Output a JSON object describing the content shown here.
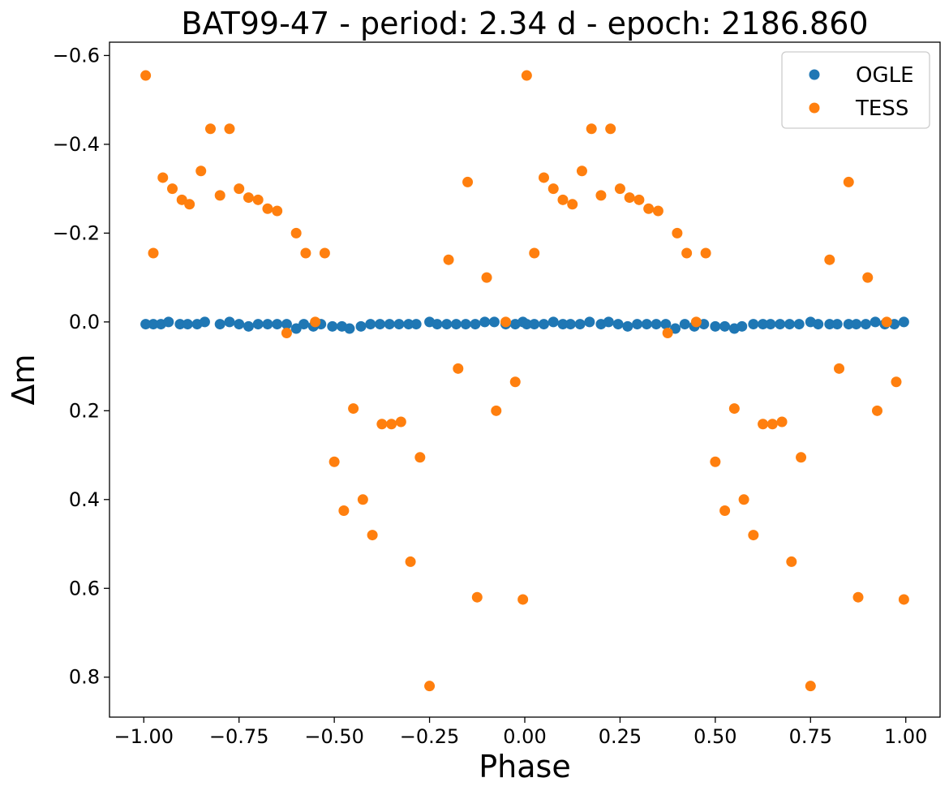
{
  "chart_data": {
    "type": "scatter",
    "title": "BAT99-47 - period: 2.34 d - epoch: 2186.860",
    "xlabel": "Phase",
    "ylabel": "Δm",
    "xlim": [
      -1.09,
      1.09
    ],
    "ylim": [
      0.89,
      -0.63
    ],
    "y_inverted": true,
    "grid": false,
    "legend_position": "top-right",
    "x_ticks": [
      -1.0,
      -0.75,
      -0.5,
      -0.25,
      0.0,
      0.25,
      0.5,
      0.75,
      1.0
    ],
    "x_tick_labels": [
      "−1.00",
      "−0.75",
      "−0.50",
      "−0.25",
      "0.00",
      "0.25",
      "0.50",
      "0.75",
      "1.00"
    ],
    "y_ticks": [
      -0.6,
      -0.4,
      -0.2,
      0.0,
      0.2,
      0.4,
      0.6,
      0.8
    ],
    "y_tick_labels": [
      "−0.6",
      "−0.4",
      "−0.2",
      "0.0",
      "0.2",
      "0.4",
      "0.6",
      "0.8"
    ],
    "series": [
      {
        "name": "OGLE",
        "color": "#1f77b4",
        "x": [
          -0.995,
          -0.975,
          -0.955,
          -0.935,
          -0.905,
          -0.885,
          -0.86,
          -0.84,
          -0.8,
          -0.775,
          -0.75,
          -0.725,
          -0.7,
          -0.675,
          -0.65,
          -0.625,
          -0.6,
          -0.58,
          -0.555,
          -0.535,
          -0.505,
          -0.48,
          -0.46,
          -0.43,
          -0.405,
          -0.38,
          -0.355,
          -0.33,
          -0.305,
          -0.285,
          -0.25,
          -0.23,
          -0.205,
          -0.18,
          -0.155,
          -0.13,
          -0.105,
          -0.08,
          -0.05,
          -0.025,
          -0.005,
          0.005,
          0.025,
          0.05,
          0.075,
          0.1,
          0.12,
          0.145,
          0.17,
          0.2,
          0.22,
          0.245,
          0.27,
          0.295,
          0.32,
          0.345,
          0.37,
          0.395,
          0.42,
          0.445,
          0.47,
          0.5,
          0.525,
          0.55,
          0.57,
          0.6,
          0.625,
          0.645,
          0.67,
          0.695,
          0.72,
          0.75,
          0.77,
          0.8,
          0.82,
          0.85,
          0.87,
          0.895,
          0.92,
          0.945,
          0.97,
          0.995
        ],
        "y": [
          0.005,
          0.005,
          0.005,
          0.0,
          0.005,
          0.005,
          0.005,
          0.0,
          0.005,
          0.0,
          0.005,
          0.01,
          0.005,
          0.005,
          0.005,
          0.005,
          0.015,
          0.005,
          0.01,
          0.005,
          0.01,
          0.01,
          0.015,
          0.01,
          0.005,
          0.005,
          0.005,
          0.005,
          0.005,
          0.005,
          0.0,
          0.005,
          0.005,
          0.005,
          0.005,
          0.005,
          0.0,
          0.0,
          0.005,
          0.005,
          0.0,
          0.005,
          0.005,
          0.005,
          0.0,
          0.005,
          0.005,
          0.005,
          0.0,
          0.005,
          0.0,
          0.005,
          0.01,
          0.005,
          0.005,
          0.005,
          0.005,
          0.015,
          0.005,
          0.01,
          0.005,
          0.01,
          0.01,
          0.015,
          0.01,
          0.005,
          0.005,
          0.005,
          0.005,
          0.005,
          0.005,
          0.0,
          0.005,
          0.005,
          0.005,
          0.005,
          0.005,
          0.005,
          0.0,
          0.005,
          0.005,
          0.0
        ]
      },
      {
        "name": "TESS",
        "color": "#ff7f0e",
        "x": [
          -0.995,
          -0.975,
          -0.95,
          -0.925,
          -0.9,
          -0.88,
          -0.85,
          -0.825,
          -0.8,
          -0.775,
          -0.75,
          -0.725,
          -0.7,
          -0.675,
          -0.65,
          -0.625,
          -0.6,
          -0.575,
          -0.55,
          -0.525,
          -0.5,
          -0.475,
          -0.45,
          -0.425,
          -0.4,
          -0.375,
          -0.35,
          -0.325,
          -0.3,
          -0.275,
          -0.25,
          -0.2,
          -0.175,
          -0.15,
          -0.125,
          -0.1,
          -0.075,
          -0.05,
          -0.025,
          -0.005,
          0.005,
          0.025,
          0.05,
          0.075,
          0.1,
          0.125,
          0.15,
          0.175,
          0.2,
          0.225,
          0.25,
          0.275,
          0.3,
          0.325,
          0.35,
          0.375,
          0.4,
          0.425,
          0.45,
          0.475,
          0.5,
          0.525,
          0.55,
          0.575,
          0.6,
          0.625,
          0.65,
          0.675,
          0.7,
          0.725,
          0.75,
          0.8,
          0.825,
          0.85,
          0.875,
          0.9,
          0.925,
          0.95,
          0.975,
          0.995
        ],
        "y": [
          -0.555,
          -0.155,
          -0.325,
          -0.3,
          -0.275,
          -0.265,
          -0.34,
          -0.435,
          -0.285,
          -0.435,
          -0.3,
          -0.28,
          -0.275,
          -0.255,
          -0.25,
          0.025,
          -0.2,
          -0.155,
          0.0,
          -0.155,
          0.315,
          0.425,
          0.195,
          0.4,
          0.48,
          0.23,
          0.23,
          0.225,
          0.54,
          0.305,
          0.82,
          -0.14,
          0.105,
          -0.315,
          0.62,
          -0.1,
          0.2,
          0.0,
          0.135,
          0.625,
          -0.555,
          -0.155,
          -0.325,
          -0.3,
          -0.275,
          -0.265,
          -0.34,
          -0.435,
          -0.285,
          -0.435,
          -0.3,
          -0.28,
          -0.275,
          -0.255,
          -0.25,
          0.025,
          -0.2,
          -0.155,
          0.0,
          -0.155,
          0.315,
          0.425,
          0.195,
          0.4,
          0.48,
          0.23,
          0.23,
          0.225,
          0.54,
          0.305,
          0.82,
          -0.14,
          0.105,
          -0.315,
          0.62,
          -0.1,
          0.2,
          0.0,
          0.135,
          0.625
        ]
      }
    ]
  }
}
